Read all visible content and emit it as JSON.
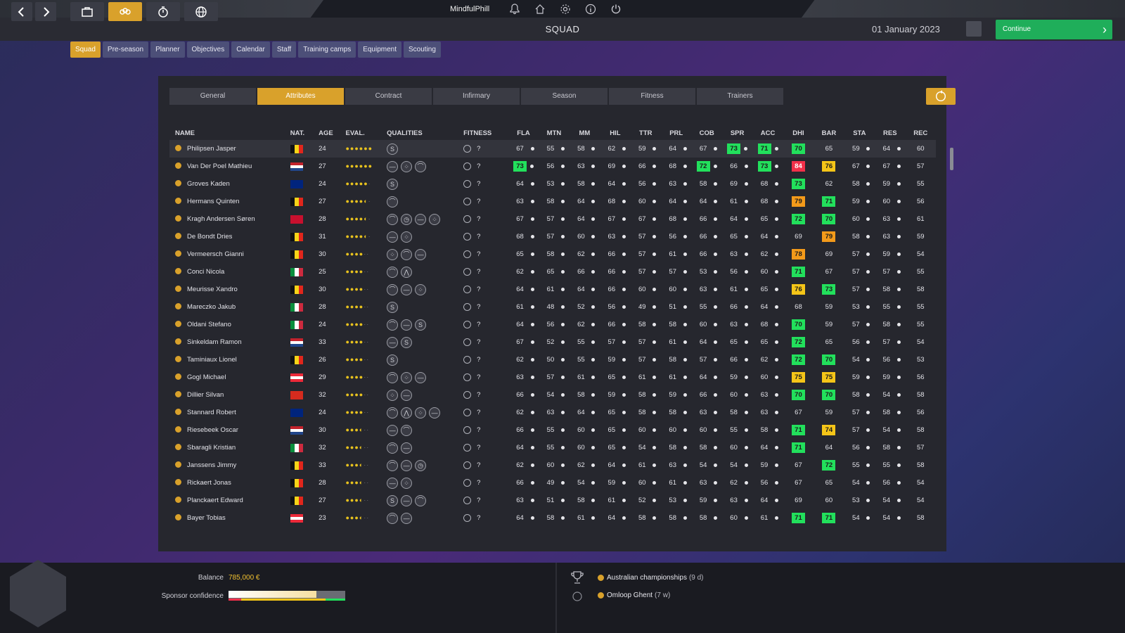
{
  "topbar": {
    "username": "MindfulPhill",
    "icons": [
      "bell-icon",
      "home-icon",
      "gear-icon",
      "info-icon",
      "power-icon"
    ]
  },
  "navbar": {
    "page_title": "SQUAD",
    "date": "01 January 2023",
    "continue_label": "Continue"
  },
  "subtabs": [
    "Squad",
    "Pre-season",
    "Planner",
    "Objectives",
    "Calendar",
    "Staff",
    "Training camps",
    "Equipment",
    "Scouting"
  ],
  "active_subtab": "Squad",
  "tabs": [
    "General",
    "Attributes",
    "Contract",
    "Infirmary",
    "Season",
    "Fitness",
    "Trainers"
  ],
  "active_tab": "Attributes",
  "columns": [
    "NAME",
    "NAT.",
    "AGE",
    "EVAL.",
    "QUALITIES",
    "FITNESS",
    "FLA",
    "MTN",
    "MM",
    "HIL",
    "TTR",
    "PRL",
    "COB",
    "SPR",
    "ACC",
    "DHI",
    "BAR",
    "STA",
    "RES",
    "REC"
  ],
  "riders": [
    {
      "name": "Philipsen Jasper",
      "nat": "BE",
      "age": "24",
      "stars": 6,
      "qual": [
        "sprint"
      ],
      "fit": "?",
      "v": [
        67,
        55,
        58,
        62,
        59,
        64,
        67,
        73,
        71,
        70,
        65,
        59,
        64,
        60
      ],
      "hl": {
        "7": "g",
        "8": "g",
        "9": "g"
      }
    },
    {
      "name": "Van Der Poel Mathieu",
      "nat": "NL",
      "age": "27",
      "stars": 6,
      "qual": [
        "flat",
        "cobble",
        "hill"
      ],
      "fit": "?",
      "v": [
        73,
        56,
        63,
        69,
        66,
        68,
        72,
        66,
        73,
        84,
        76,
        67,
        67,
        57
      ],
      "hl": {
        "0": "g",
        "6": "g",
        "8": "g",
        "9": "rd",
        "10": "y"
      }
    },
    {
      "name": "Groves Kaden",
      "nat": "AU",
      "age": "24",
      "stars": 5,
      "qual": [
        "sprint"
      ],
      "fit": "?",
      "v": [
        64,
        53,
        58,
        64,
        56,
        63,
        58,
        69,
        68,
        73,
        62,
        58,
        59,
        55
      ],
      "hl": {
        "9": "g"
      }
    },
    {
      "name": "Hermans Quinten",
      "nat": "BE",
      "age": "27",
      "stars": 4.5,
      "qual": [
        "hill"
      ],
      "fit": "?",
      "v": [
        63,
        58,
        64,
        68,
        60,
        64,
        64,
        61,
        68,
        79,
        71,
        59,
        60,
        56
      ],
      "hl": {
        "9": "o",
        "10": "g"
      }
    },
    {
      "name": "Kragh Andersen Søren",
      "nat": "DK",
      "age": "28",
      "stars": 4.5,
      "qual": [
        "hill",
        "timetrial",
        "flat",
        "cobble"
      ],
      "fit": "?",
      "v": [
        67,
        57,
        64,
        67,
        67,
        68,
        66,
        64,
        65,
        72,
        70,
        60,
        63,
        61
      ],
      "hl": {
        "9": "g",
        "10": "g"
      }
    },
    {
      "name": "De Bondt Dries",
      "nat": "BE",
      "age": "31",
      "stars": 4.5,
      "qual": [
        "flat",
        "cobble"
      ],
      "fit": "?",
      "v": [
        68,
        57,
        60,
        63,
        57,
        56,
        66,
        65,
        64,
        69,
        79,
        58,
        63,
        59
      ],
      "hl": {
        "10": "o"
      }
    },
    {
      "name": "Vermeersch Gianni",
      "nat": "BE",
      "age": "30",
      "stars": 4,
      "qual": [
        "cobble",
        "hill",
        "flat"
      ],
      "fit": "?",
      "v": [
        65,
        58,
        62,
        66,
        57,
        61,
        66,
        63,
        62,
        78,
        69,
        57,
        59,
        54
      ],
      "hl": {
        "9": "o"
      }
    },
    {
      "name": "Conci Nicola",
      "nat": "IT",
      "age": "25",
      "stars": 4,
      "qual": [
        "hill",
        "mountain"
      ],
      "fit": "?",
      "v": [
        62,
        65,
        66,
        66,
        57,
        57,
        53,
        56,
        60,
        71,
        67,
        57,
        57,
        55
      ],
      "hl": {
        "9": "g"
      }
    },
    {
      "name": "Meurisse Xandro",
      "nat": "BE",
      "age": "30",
      "stars": 4,
      "qual": [
        "hill",
        "flat",
        "cobble"
      ],
      "fit": "?",
      "v": [
        64,
        61,
        64,
        66,
        60,
        60,
        63,
        61,
        65,
        76,
        73,
        57,
        58,
        58
      ],
      "hl": {
        "9": "y",
        "10": "g"
      }
    },
    {
      "name": "Mareczko Jakub",
      "nat": "IT",
      "age": "28",
      "stars": 4,
      "qual": [
        "sprint"
      ],
      "fit": "?",
      "v": [
        61,
        48,
        52,
        56,
        49,
        51,
        55,
        66,
        64,
        68,
        59,
        53,
        55,
        55
      ],
      "hl": {}
    },
    {
      "name": "Oldani Stefano",
      "nat": "IT",
      "age": "24",
      "stars": 4,
      "qual": [
        "hill",
        "flat",
        "sprint"
      ],
      "fit": "?",
      "v": [
        64,
        56,
        62,
        66,
        58,
        58,
        60,
        63,
        68,
        70,
        59,
        57,
        58,
        55
      ],
      "hl": {
        "9": "g"
      }
    },
    {
      "name": "Sinkeldam Ramon",
      "nat": "NL",
      "age": "33",
      "stars": 4,
      "qual": [
        "flat",
        "sprint"
      ],
      "fit": "?",
      "v": [
        67,
        52,
        55,
        57,
        57,
        61,
        64,
        65,
        65,
        72,
        65,
        56,
        57,
        54
      ],
      "hl": {
        "9": "g"
      }
    },
    {
      "name": "Taminiaux Lionel",
      "nat": "BE",
      "age": "26",
      "stars": 4,
      "qual": [
        "sprint"
      ],
      "fit": "?",
      "v": [
        62,
        50,
        55,
        59,
        57,
        58,
        57,
        66,
        62,
        72,
        70,
        54,
        56,
        53
      ],
      "hl": {
        "9": "g",
        "10": "g"
      }
    },
    {
      "name": "Gogl Michael",
      "nat": "AT",
      "age": "29",
      "stars": 4,
      "qual": [
        "hill",
        "cobble",
        "flat"
      ],
      "fit": "?",
      "v": [
        63,
        57,
        61,
        65,
        61,
        61,
        64,
        59,
        60,
        75,
        75,
        59,
        59,
        56
      ],
      "hl": {
        "9": "y",
        "10": "y"
      }
    },
    {
      "name": "Dillier Silvan",
      "nat": "CH",
      "age": "32",
      "stars": 4,
      "qual": [
        "cobble",
        "flat"
      ],
      "fit": "?",
      "v": [
        66,
        54,
        58,
        59,
        58,
        59,
        66,
        60,
        63,
        70,
        70,
        58,
        54,
        58
      ],
      "hl": {
        "9": "g",
        "10": "g"
      }
    },
    {
      "name": "Stannard Robert",
      "nat": "AU",
      "age": "24",
      "stars": 4,
      "qual": [
        "hill",
        "mountain",
        "cobble",
        "flat"
      ],
      "fit": "?",
      "v": [
        62,
        63,
        64,
        65,
        58,
        58,
        63,
        58,
        63,
        67,
        59,
        57,
        58,
        56
      ],
      "hl": {}
    },
    {
      "name": "Riesebeek Oscar",
      "nat": "NL",
      "age": "30",
      "stars": 3.5,
      "qual": [
        "flat",
        "hill"
      ],
      "fit": "?",
      "v": [
        66,
        55,
        60,
        65,
        60,
        60,
        60,
        55,
        58,
        71,
        74,
        57,
        54,
        58
      ],
      "hl": {
        "9": "g",
        "10": "y"
      }
    },
    {
      "name": "Sbaragli Kristian",
      "nat": "IT",
      "age": "32",
      "stars": 3.5,
      "qual": [
        "hill",
        "flat"
      ],
      "fit": "?",
      "v": [
        64,
        55,
        60,
        65,
        54,
        58,
        58,
        60,
        64,
        71,
        64,
        56,
        58,
        57
      ],
      "hl": {
        "9": "g"
      }
    },
    {
      "name": "Janssens Jimmy",
      "nat": "BE",
      "age": "33",
      "stars": 3.5,
      "qual": [
        "hill",
        "flat",
        "timetrial"
      ],
      "fit": "?",
      "v": [
        62,
        60,
        62,
        64,
        61,
        63,
        54,
        54,
        59,
        67,
        72,
        55,
        55,
        58
      ],
      "hl": {
        "10": "g"
      }
    },
    {
      "name": "Rickaert Jonas",
      "nat": "BE",
      "age": "28",
      "stars": 3.5,
      "qual": [
        "flat",
        "cobble"
      ],
      "fit": "?",
      "v": [
        66,
        49,
        54,
        59,
        60,
        61,
        63,
        62,
        56,
        67,
        65,
        54,
        56,
        54
      ],
      "hl": {}
    },
    {
      "name": "Planckaert Edward",
      "nat": "BE",
      "age": "27",
      "stars": 3.5,
      "qual": [
        "sprint",
        "flat",
        "hill"
      ],
      "fit": "?",
      "v": [
        63,
        51,
        58,
        61,
        52,
        53,
        59,
        63,
        64,
        69,
        60,
        53,
        54,
        54
      ],
      "hl": {}
    },
    {
      "name": "Bayer Tobias",
      "nat": "AT",
      "age": "23",
      "stars": 3.5,
      "qual": [
        "hill",
        "flat"
      ],
      "fit": "?",
      "v": [
        64,
        58,
        61,
        64,
        58,
        58,
        58,
        60,
        61,
        71,
        71,
        54,
        54,
        58
      ],
      "hl": {
        "9": "g",
        "10": "g"
      }
    }
  ],
  "bottom": {
    "balance_label": "Balance",
    "balance_value": "785,000 €",
    "sponsor_label": "Sponsor confidence",
    "sponsor_confidence": 0.75,
    "events": [
      {
        "name": "Australian championships",
        "when": "(9 d)"
      },
      {
        "name": "Omloop Ghent",
        "when": "(7 w)"
      }
    ]
  },
  "colors": {
    "accent": "#d9a12b",
    "green": "#22e05c",
    "yellow": "#f5c518",
    "orange": "#f39a1a",
    "red": "#f2304a",
    "continue": "#1fae5a"
  }
}
